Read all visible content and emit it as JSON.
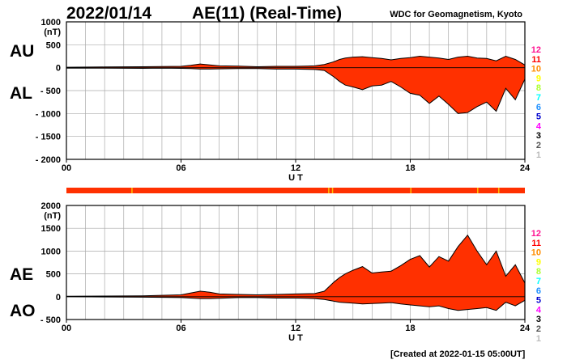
{
  "header": {
    "date": "2022/01/14",
    "title": "AE(11) (Real-Time)",
    "org": "WDC for Geomagnetism, Kyoto"
  },
  "footer": {
    "created": "[Created at 2022-01-15 05:00UT]"
  },
  "colors": {
    "fill": "#ff3000",
    "outline": "#000000",
    "grid": "#aaaaaa",
    "status_ok": "#ff3000",
    "status_flag": "#ffc000"
  },
  "station_legend": {
    "labels": [
      "12",
      "11",
      "10",
      "9",
      "8",
      "7",
      "6",
      "5",
      "4",
      "3",
      "2",
      "1"
    ],
    "colors": [
      "#ff1493",
      "#ff0000",
      "#ff8c00",
      "#ffff00",
      "#adff2f",
      "#00ffff",
      "#1e90ff",
      "#0000cd",
      "#ff00ff",
      "#000000",
      "#555555",
      "#bbbbbb"
    ]
  },
  "chart_data": [
    {
      "type": "area",
      "name": "AU/AL",
      "labels_left": [
        "AU",
        "AL"
      ],
      "unit": "(nT)",
      "xlabel": "U T",
      "xlim": [
        0,
        24
      ],
      "ylim": [
        -2000,
        1000
      ],
      "x_ticks": [
        "00",
        "06",
        "12",
        "18",
        "24"
      ],
      "y_ticks": [
        {
          "v": 1000,
          "t": "1000"
        },
        {
          "v": 500,
          "t": "500"
        },
        {
          "v": 0,
          "t": "0"
        },
        {
          "v": -500,
          "t": "- 500"
        },
        {
          "v": -1000,
          "t": "- 1000"
        },
        {
          "v": -1500,
          "t": "- 1500"
        },
        {
          "v": -2000,
          "t": "- 2000"
        }
      ],
      "series": [
        {
          "name": "AU",
          "x": [
            0,
            2,
            4,
            5,
            6,
            6.5,
            7,
            7.5,
            8,
            9,
            10,
            11,
            12,
            13,
            13.5,
            14,
            14.3,
            14.6,
            15,
            15.5,
            16,
            16.5,
            17,
            17.5,
            18,
            18.5,
            19,
            19.5,
            20,
            20.5,
            21,
            21.5,
            22,
            22.5,
            23,
            23.5,
            24
          ],
          "values": [
            10,
            15,
            20,
            25,
            30,
            50,
            80,
            60,
            40,
            35,
            20,
            30,
            30,
            40,
            70,
            130,
            180,
            210,
            230,
            240,
            220,
            200,
            170,
            200,
            220,
            250,
            230,
            210,
            180,
            230,
            250,
            210,
            200,
            150,
            250,
            180,
            60
          ]
        },
        {
          "name": "AL",
          "x": [
            0,
            2,
            4,
            5,
            6,
            6.5,
            7,
            7.5,
            8,
            9,
            10,
            11,
            12,
            13,
            13.5,
            14,
            14.3,
            14.6,
            15,
            15.5,
            16,
            16.5,
            17,
            17.5,
            18,
            18.5,
            19,
            19.5,
            20,
            20.5,
            21,
            21.5,
            22,
            22.5,
            23,
            23.5,
            24
          ],
          "values": [
            -10,
            -10,
            -15,
            -10,
            -15,
            -20,
            -30,
            -30,
            -25,
            -20,
            -20,
            -30,
            -30,
            -40,
            -60,
            -200,
            -300,
            -380,
            -420,
            -480,
            -400,
            -380,
            -300,
            -420,
            -560,
            -600,
            -780,
            -620,
            -800,
            -1000,
            -980,
            -850,
            -750,
            -950,
            -450,
            -700,
            -250
          ]
        }
      ]
    },
    {
      "type": "area",
      "name": "AE/AO",
      "labels_left": [
        "AE",
        "AO"
      ],
      "unit": "(nT)",
      "xlabel": "U T",
      "xlim": [
        0,
        24
      ],
      "ylim": [
        -500,
        2000
      ],
      "x_ticks": [
        "00",
        "06",
        "12",
        "18",
        "24"
      ],
      "y_ticks": [
        {
          "v": 2000,
          "t": "2000"
        },
        {
          "v": 1500,
          "t": "1500"
        },
        {
          "v": 1000,
          "t": "1000"
        },
        {
          "v": 500,
          "t": "500"
        },
        {
          "v": 0,
          "t": "0"
        },
        {
          "v": -500,
          "t": "- 500"
        }
      ],
      "series": [
        {
          "name": "AE",
          "x": [
            0,
            2,
            4,
            5,
            6,
            6.5,
            7,
            7.5,
            8,
            9,
            10,
            11,
            12,
            13,
            13.5,
            14,
            14.3,
            14.6,
            15,
            15.5,
            16,
            16.5,
            17,
            17.5,
            18,
            18.5,
            19,
            19.5,
            20,
            20.5,
            21,
            21.5,
            22,
            22.5,
            23,
            23.5,
            24
          ],
          "values": [
            10,
            15,
            20,
            30,
            40,
            80,
            120,
            100,
            60,
            50,
            40,
            50,
            60,
            70,
            120,
            320,
            420,
            500,
            580,
            660,
            520,
            540,
            560,
            680,
            820,
            900,
            650,
            880,
            780,
            1100,
            1350,
            1000,
            700,
            1000,
            450,
            700,
            300
          ]
        },
        {
          "name": "AO",
          "x": [
            0,
            2,
            4,
            5,
            6,
            6.5,
            7,
            7.5,
            8,
            9,
            10,
            11,
            12,
            13,
            13.5,
            14,
            14.3,
            14.6,
            15,
            15.5,
            16,
            16.5,
            17,
            17.5,
            18,
            18.5,
            19,
            19.5,
            20,
            20.5,
            21,
            21.5,
            22,
            22.5,
            23,
            23.5,
            24
          ],
          "values": [
            0,
            -5,
            -10,
            -15,
            -20,
            -30,
            -40,
            -40,
            -35,
            -20,
            -20,
            -30,
            -30,
            -40,
            -60,
            -100,
            -120,
            -130,
            -140,
            -160,
            -150,
            -140,
            -130,
            -160,
            -180,
            -200,
            -220,
            -200,
            -260,
            -300,
            -280,
            -260,
            -240,
            -300,
            -120,
            -200,
            -80
          ]
        }
      ]
    }
  ]
}
